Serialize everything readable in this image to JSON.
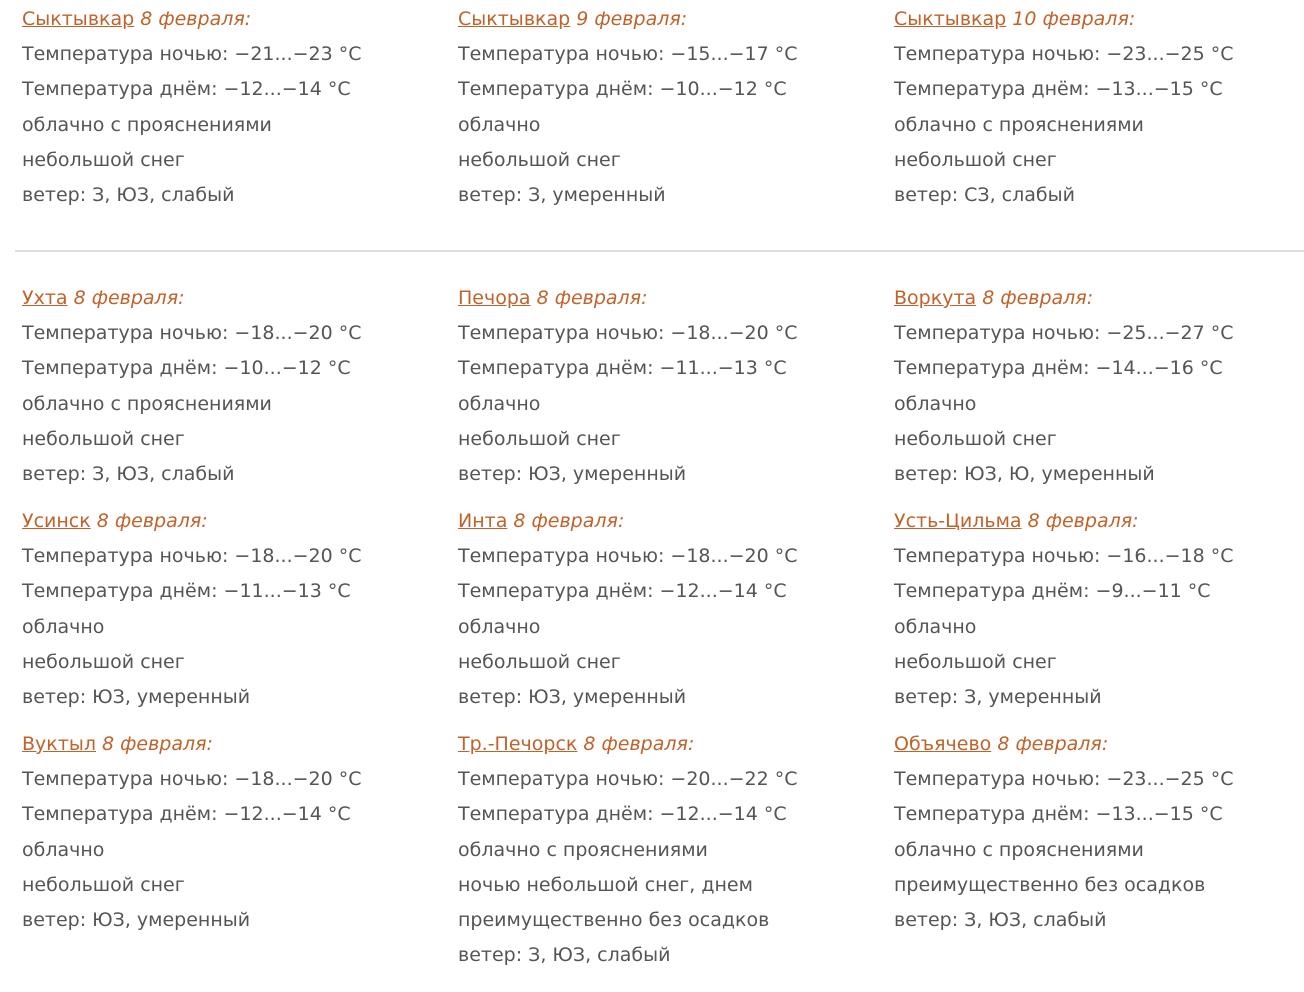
{
  "colors": {
    "link": "#c0622a",
    "text": "#555555"
  },
  "rows": [
    [
      {
        "city": "Сыктывкар",
        "date": "8 февраля:",
        "lines": [
          "Температура ночью: −21...−23 °C",
          "Температура днём: −12...−14 °C",
          "облачно с прояснениями",
          "небольшой снег",
          "ветер: З, ЮЗ, слабый"
        ]
      },
      {
        "city": "Сыктывкар",
        "date": "9 февраля:",
        "lines": [
          "Температура ночью: −15...−17 °C",
          "Температура днём: −10...−12 °C",
          "облачно",
          "небольшой снег",
          "ветер: З, умеренный"
        ]
      },
      {
        "city": "Сыктывкар",
        "date": "10 февраля:",
        "lines": [
          "Температура ночью: −23...−25 °C",
          "Температура днём: −13...−15 °C",
          "облачно с прояснениями",
          "небольшой снег",
          "ветер: СЗ, слабый"
        ]
      }
    ],
    [
      {
        "city": "Ухта",
        "date": "8 февраля:",
        "lines": [
          "Температура ночью: −18...−20 °C",
          "Температура днём: −10...−12 °C",
          "облачно с прояснениями",
          "небольшой снег",
          "ветер: З, ЮЗ, слабый"
        ]
      },
      {
        "city": "Печора",
        "date": "8 февраля:",
        "lines": [
          "Температура ночью: −18...−20 °C",
          "Температура днём: −11...−13 °C",
          "облачно",
          "небольшой снег",
          "ветер: ЮЗ, умеренный"
        ]
      },
      {
        "city": "Воркута",
        "date": "8 февраля:",
        "lines": [
          "Температура ночью: −25...−27 °C",
          "Температура днём: −14...−16 °C",
          "облачно",
          "небольшой снег",
          "ветер: ЮЗ, Ю, умеренный"
        ]
      }
    ],
    [
      {
        "city": "Усинск",
        "date": "8 февраля:",
        "lines": [
          "Температура ночью: −18...−20 °C",
          "Температура днём: −11...−13 °C",
          "облачно",
          "небольшой снег",
          "ветер: ЮЗ, умеренный"
        ]
      },
      {
        "city": "Инта",
        "date": "8 февраля:",
        "lines": [
          "Температура ночью: −18...−20 °C",
          "Температура днём: −12...−14 °C",
          "облачно",
          "небольшой снег",
          "ветер: ЮЗ, умеренный"
        ]
      },
      {
        "city": "Усть-Цильма",
        "date": "8 февраля:",
        "lines": [
          "Температура ночью: −16...−18 °C",
          "Температура днём: −9...−11 °C",
          "облачно",
          "небольшой снег",
          "ветер: З, умеренный"
        ]
      }
    ],
    [
      {
        "city": "Вуктыл",
        "date": "8 февраля:",
        "lines": [
          "Температура ночью: −18...−20 °C",
          "Температура днём: −12...−14 °C",
          "облачно",
          "небольшой снег",
          "ветер: ЮЗ, умеренный"
        ]
      },
      {
        "city": "Тр.-Печорск",
        "date": "8 февраля:",
        "lines": [
          "Температура ночью: −20...−22 °C",
          "Температура днём: −12...−14 °C",
          "облачно с прояснениями",
          "ночью небольшой снег, днем",
          "преимущественно без осадков",
          "ветер: З, ЮЗ, слабый"
        ]
      },
      {
        "city": "Объячево",
        "date": "8 февраля:",
        "lines": [
          "Температура ночью: −23...−25 °C",
          "Температура днём: −13...−15 °C",
          "облачно с прояснениями",
          "преимущественно без осадков",
          "ветер: З, ЮЗ, слабый"
        ]
      }
    ]
  ]
}
